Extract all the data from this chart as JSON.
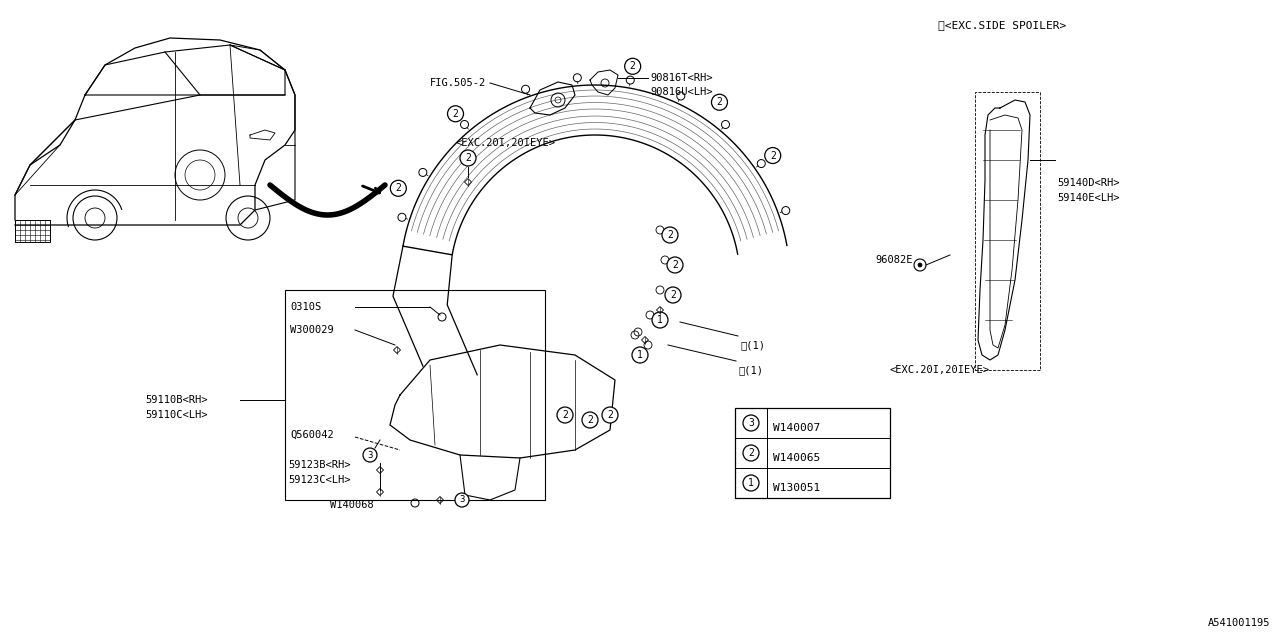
{
  "bg_color": "#ffffff",
  "line_color": "#000000",
  "fig_number": "A541001195",
  "ann": {
    "exc_side_spoiler": "※<EXC.SIDE SPOILER>",
    "fig_505_2": "FIG.505-2",
    "exc_20i_top": "<EXC.20I,20IEYE>",
    "exc_20i_bottom": "<EXC.20I,20IEYE>",
    "part_90816T": "90816T<RH>",
    "part_90816U": "90816U<LH>",
    "part_59140D": "59140D<RH>",
    "part_59140E": "59140E<LH>",
    "part_96082E": "96082E",
    "part_0310S": "0310S",
    "part_W300029": "W300029",
    "part_59110B": "59110B<RH>",
    "part_59110C": "59110C<LH>",
    "part_Q560042": "Q560042",
    "part_59123B": "59123B<RH>",
    "part_59123C": "59123C<LH>",
    "part_W140068": "W140068",
    "legend_1": "W130051",
    "legend_2": "W140065",
    "legend_3": "W140007",
    "ast1a": "※(1)",
    "ast1b": "※(1)"
  },
  "fs": 7.5,
  "fs_lg": 8.5
}
